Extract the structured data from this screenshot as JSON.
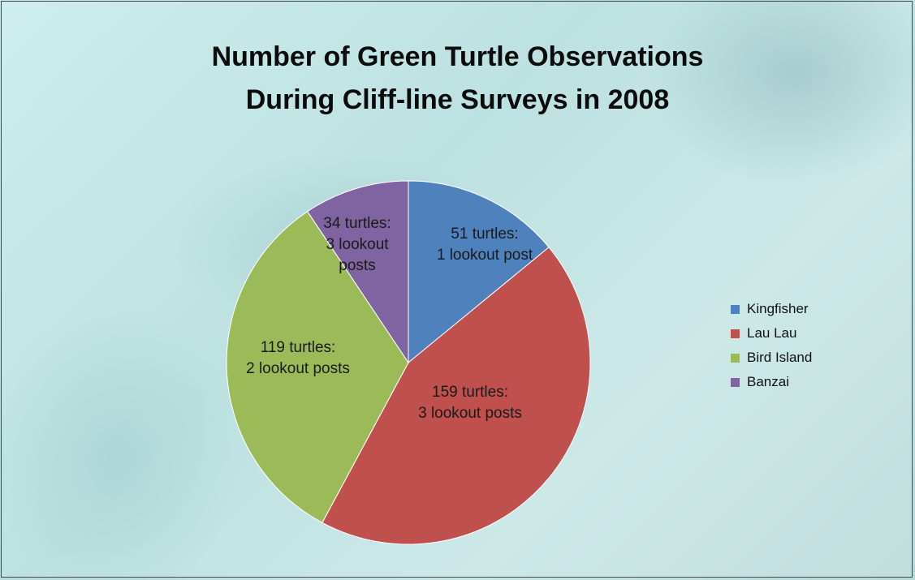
{
  "chart_data": {
    "type": "pie",
    "title": [
      "Number of Green Turtle Observations",
      "During Cliff-line Surveys in 2008"
    ],
    "legend_position": "right",
    "slices": [
      {
        "name": "Kingfisher",
        "value": 51,
        "label": [
          "51 turtles:",
          "1 lookout post"
        ],
        "color": "#4f81bd"
      },
      {
        "name": "Lau Lau",
        "value": 159,
        "label": [
          "159 turtles:",
          "3 lookout posts"
        ],
        "color": "#c0504d"
      },
      {
        "name": "Bird Island",
        "value": 119,
        "label": [
          "119 turtles:",
          "2 lookout posts"
        ],
        "color": "#9bbb59"
      },
      {
        "name": "Banzai",
        "value": 34,
        "label": [
          "34 turtles:",
          "3 lookout",
          "posts"
        ],
        "color": "#8064a2"
      }
    ]
  }
}
